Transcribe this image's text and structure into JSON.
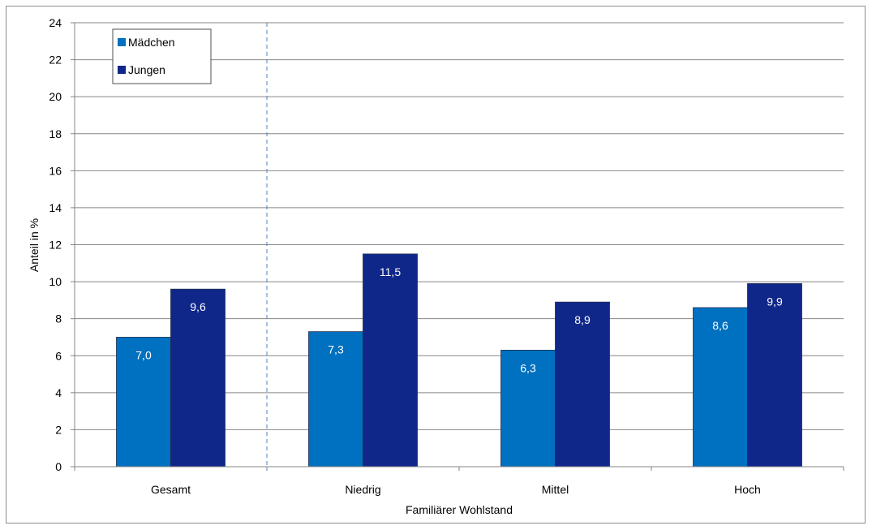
{
  "chart_data": {
    "type": "bar",
    "categories": [
      "Gesamt",
      "Niedrig",
      "Mittel",
      "Hoch"
    ],
    "series": [
      {
        "name": "Mädchen",
        "values": [
          7.0,
          7.3,
          6.3,
          8.6
        ],
        "labels": [
          "7,0",
          "7,3",
          "6,3",
          "8,6"
        ],
        "color": "#0070c0"
      },
      {
        "name": "Jungen",
        "values": [
          9.6,
          11.5,
          8.9,
          9.9
        ],
        "labels": [
          "9,6",
          "11,5",
          "8,9",
          "9,9"
        ],
        "color": "#10278a"
      }
    ],
    "xlabel": "Familiärer Wohlstand",
    "ylabel": "Anteil in %",
    "ylim": [
      0,
      24
    ],
    "yticks": [
      0,
      2,
      4,
      6,
      8,
      10,
      12,
      14,
      16,
      18,
      20,
      22,
      24
    ],
    "grid": true,
    "legend_position": "top-left",
    "separator_after_first_category": true,
    "colors": {
      "gridline": "#868686",
      "separator": "#4f81bd",
      "bar_border": "#1f2f4f"
    }
  }
}
